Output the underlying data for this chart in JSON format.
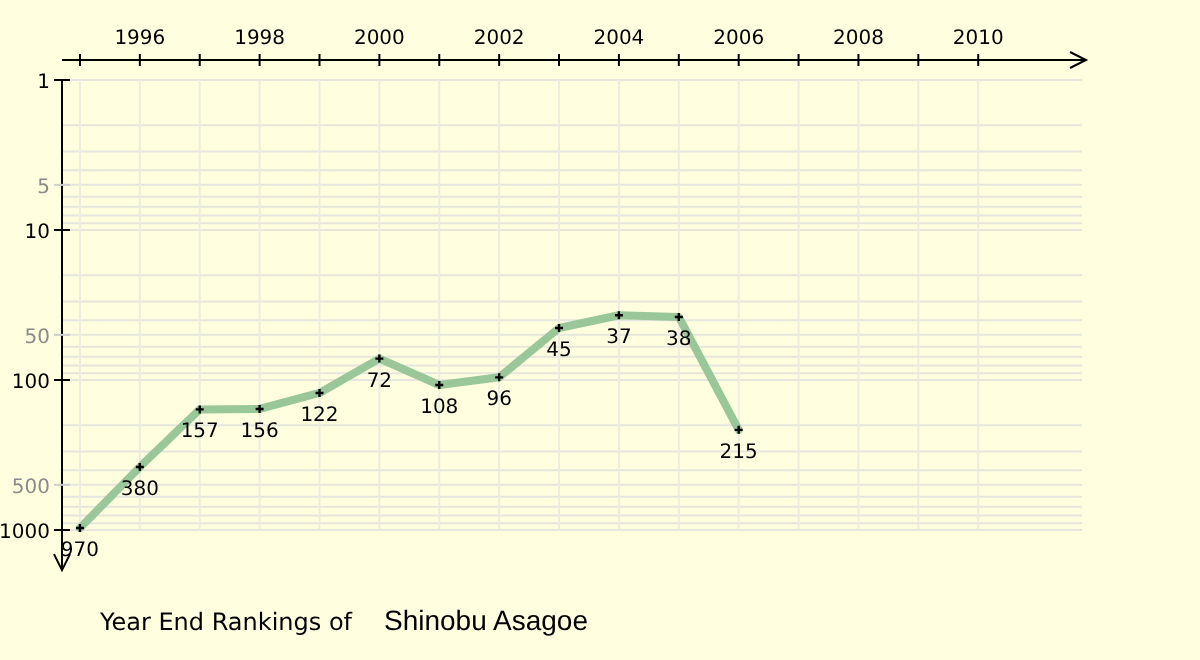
{
  "chart_data": {
    "type": "line",
    "title": "Year End Rankings of",
    "subtitle": "Shinobu Asagoe",
    "x": [
      1995,
      1996,
      1997,
      1998,
      1999,
      2000,
      2001,
      2002,
      2003,
      2004,
      2005,
      2006
    ],
    "series": [
      {
        "color": "#99c799",
        "values": [
          970,
          380,
          157,
          156,
          122,
          72,
          108,
          96,
          45,
          37,
          38,
          215
        ]
      }
    ],
    "xlim": [
      1994.7,
      2011.8
    ],
    "xticks": [
      {
        "value": 1995,
        "label": null
      },
      1996,
      {
        "value": 1997,
        "label": null
      },
      1998,
      {
        "value": 1999,
        "label": null
      },
      2000,
      {
        "value": 2001,
        "label": null
      },
      2002,
      {
        "value": 2003,
        "label": null
      },
      2004,
      {
        "value": 2005,
        "label": null
      },
      2006,
      {
        "value": 2007,
        "label": null
      },
      2008,
      {
        "value": 2009,
        "label": null
      },
      2010
    ],
    "ylim": [
      1850,
      1
    ],
    "yticks": [
      1,
      5,
      10,
      50,
      100,
      500,
      1000
    ],
    "log": "y",
    "grid": true,
    "marker": "cross",
    "line_style": "solid",
    "data_labels": true
  }
}
